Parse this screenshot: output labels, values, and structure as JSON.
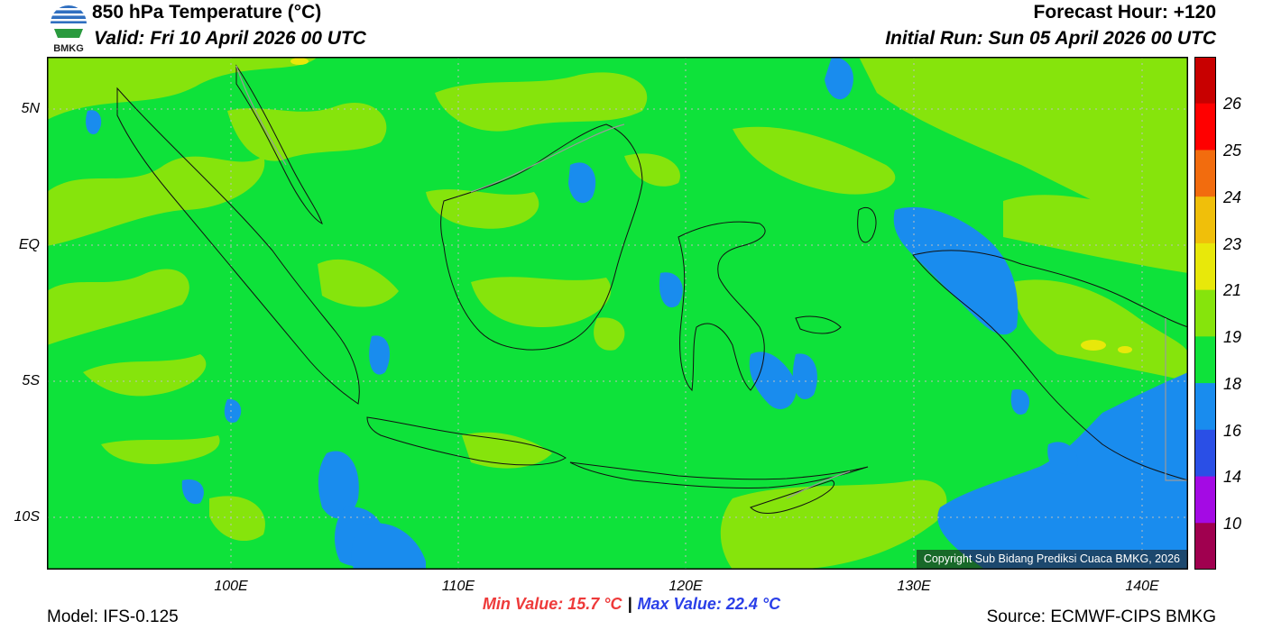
{
  "header": {
    "title": "850 hPa Temperature (°C)",
    "valid": "Valid: Fri 10 April 2026 00 UTC",
    "forecast_hour": "Forecast Hour: +120",
    "initial_run": "Initial Run: Sun 05 April 2026 00 UTC"
  },
  "logo": {
    "text": "BMKG"
  },
  "map": {
    "lat_labels": [
      "5N",
      "EQ",
      "5S",
      "10S"
    ],
    "lon_labels": [
      "100E",
      "110E",
      "120E",
      "130E",
      "140E"
    ],
    "copyright": "Copyright Sub Bidang Prediksi Cuaca BMKG, 2026"
  },
  "colorbar": {
    "labels": [
      "26",
      "25",
      "24",
      "23",
      "21",
      "19",
      "18",
      "16",
      "14",
      "10"
    ],
    "colors": [
      "#c80000",
      "#ff0000",
      "#f26c0e",
      "#f0bf0a",
      "#e8e80a",
      "#86e40c",
      "#0ee23a",
      "#198cee",
      "#2a4fe6",
      "#a40ae4",
      "#a0004f"
    ]
  },
  "stats": {
    "min": "Min Value: 15.7 °C",
    "separator": "|",
    "max": "Max Value: 22.4 °C"
  },
  "footer": {
    "model": "Model: IFS-0.125",
    "source": "Source: ECMWF-CIPS BMKG"
  }
}
